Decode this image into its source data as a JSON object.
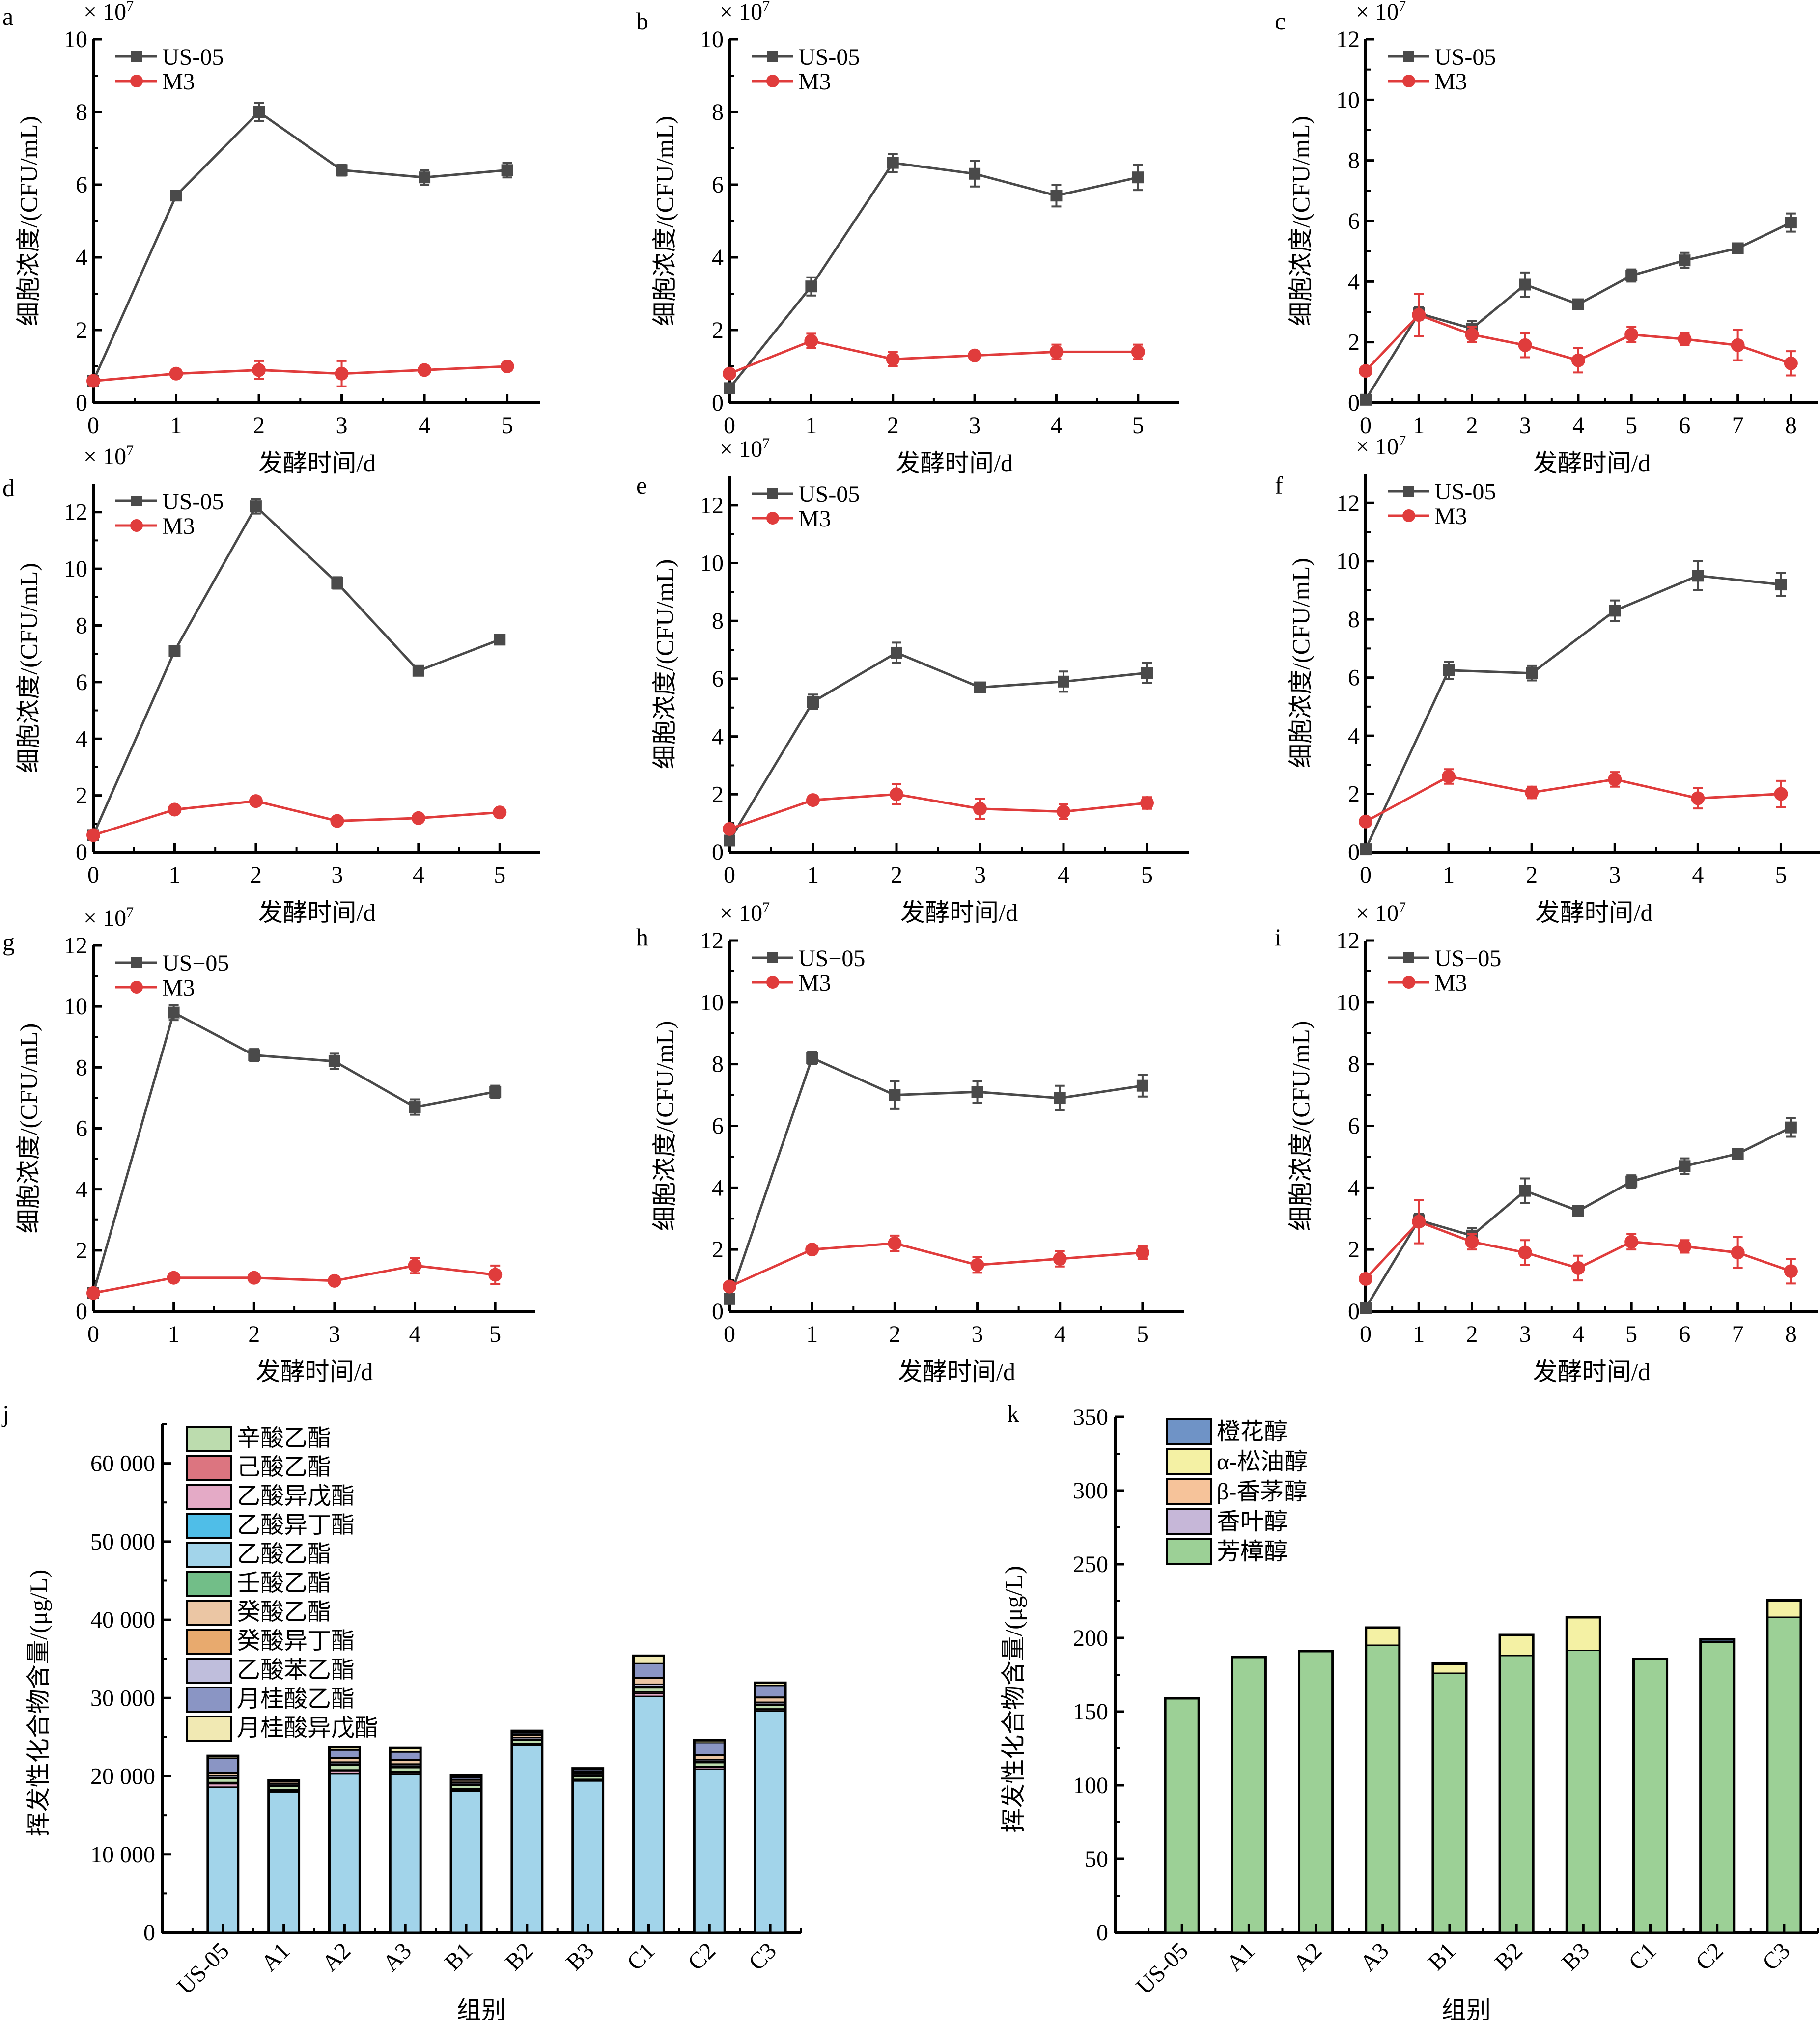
{
  "colors": {
    "us05": "#4a4a4a",
    "m3": "#e03c3c"
  },
  "chart_data": [
    {
      "id": "a",
      "type": "line",
      "panel_label": "a",
      "multiplier": "× 10",
      "exponent": "7",
      "xlabel": "发酵时间/d",
      "ylabel": "细胞浓度/(CFU/mL)",
      "ylim": [
        0,
        10
      ],
      "yticks": [
        0,
        2,
        4,
        6,
        8,
        10
      ],
      "xlim": [
        0,
        5.4
      ],
      "xticks": [
        0,
        1,
        2,
        3,
        4,
        5
      ],
      "series": [
        {
          "name": "US-05",
          "marker": "square",
          "values": [
            0.6,
            5.7,
            8.0,
            6.4,
            6.2,
            6.4
          ],
          "errors": [
            0.1,
            0.1,
            0.25,
            0.15,
            0.2,
            0.2
          ]
        },
        {
          "name": "M3",
          "marker": "circle",
          "values": [
            0.6,
            0.8,
            0.9,
            0.8,
            0.9,
            1.0
          ],
          "errors": [
            0.05,
            0.05,
            0.25,
            0.35,
            0.1,
            0.05
          ]
        }
      ]
    },
    {
      "id": "b",
      "type": "line",
      "panel_label": "b",
      "multiplier": "× 10",
      "exponent": "7",
      "xlabel": "发酵时间/d",
      "ylabel": "细胞浓度/(CFU/mL)",
      "ylim": [
        0,
        10
      ],
      "yticks": [
        0,
        2,
        4,
        6,
        8,
        10
      ],
      "xlim": [
        0,
        5.5
      ],
      "xticks": [
        0,
        1,
        2,
        3,
        4,
        5
      ],
      "series": [
        {
          "name": "US-05",
          "marker": "square",
          "values": [
            0.4,
            3.2,
            6.6,
            6.3,
            5.7,
            6.2
          ],
          "errors": [
            0.05,
            0.25,
            0.25,
            0.35,
            0.3,
            0.35
          ]
        },
        {
          "name": "M3",
          "marker": "circle",
          "values": [
            0.8,
            1.7,
            1.2,
            1.3,
            1.4,
            1.4
          ],
          "errors": [
            0.05,
            0.2,
            0.2,
            0.1,
            0.2,
            0.2
          ]
        }
      ]
    },
    {
      "id": "c",
      "type": "line",
      "panel_label": "c",
      "multiplier": "× 10",
      "exponent": "7",
      "xlabel": "发酵时间/d",
      "ylabel": "细胞浓度/(CFU/mL)",
      "ylim": [
        0,
        12
      ],
      "yticks": [
        0,
        2,
        4,
        6,
        8,
        10,
        12
      ],
      "xlim": [
        0,
        8.5
      ],
      "xticks": [
        0,
        1,
        2,
        3,
        4,
        5,
        6,
        7,
        8
      ],
      "series": [
        {
          "name": "US-05",
          "marker": "square",
          "values": [
            0.1,
            2.95,
            2.45,
            3.9,
            3.25,
            4.2,
            4.7,
            5.1,
            5.95
          ],
          "errors": [
            0.05,
            0.2,
            0.25,
            0.4,
            0.1,
            0.2,
            0.25,
            0.15,
            0.3
          ]
        },
        {
          "name": "M3",
          "marker": "circle",
          "values": [
            1.05,
            2.9,
            2.25,
            1.9,
            1.4,
            2.25,
            2.1,
            1.9,
            1.3
          ],
          "errors": [
            0.05,
            0.7,
            0.25,
            0.4,
            0.4,
            0.25,
            0.2,
            0.5,
            0.4
          ]
        }
      ]
    },
    {
      "id": "d",
      "type": "line",
      "panel_label": "d",
      "multiplier": "× 10",
      "exponent": "7",
      "xlabel": "发酵时间/d",
      "ylabel": "细胞浓度/(CFU/mL)",
      "ylim": [
        0,
        13
      ],
      "yticks": [
        0,
        2,
        4,
        6,
        8,
        10,
        12
      ],
      "xlim": [
        0,
        5.5
      ],
      "xticks": [
        0,
        1,
        2,
        3,
        4,
        5
      ],
      "series": [
        {
          "name": "US-05",
          "marker": "square",
          "values": [
            0.6,
            7.1,
            12.2,
            9.5,
            6.4,
            7.5
          ],
          "errors": [
            0.05,
            0.1,
            0.25,
            0.2,
            0.1,
            0.15
          ]
        },
        {
          "name": "M3",
          "marker": "circle",
          "values": [
            0.6,
            1.5,
            1.8,
            1.1,
            1.2,
            1.4
          ],
          "errors": [
            0.05,
            0.1,
            0.1,
            0.05,
            0.1,
            0.05
          ]
        }
      ]
    },
    {
      "id": "e",
      "type": "line",
      "panel_label": "e",
      "multiplier": "× 10",
      "exponent": "7",
      "xlabel": "发酵时间/d",
      "ylabel": "细胞浓度/(CFU/mL)",
      "ylim": [
        0,
        13
      ],
      "yticks": [
        0,
        2,
        4,
        6,
        8,
        10,
        12
      ],
      "xlim": [
        0,
        5.5
      ],
      "xticks": [
        0,
        1,
        2,
        3,
        4,
        5
      ],
      "series": [
        {
          "name": "US-05",
          "marker": "square",
          "values": [
            0.4,
            5.2,
            6.9,
            5.7,
            5.9,
            6.2
          ],
          "errors": [
            0.05,
            0.25,
            0.35,
            0.15,
            0.35,
            0.35
          ]
        },
        {
          "name": "M3",
          "marker": "circle",
          "values": [
            0.8,
            1.8,
            2.0,
            1.5,
            1.4,
            1.7
          ],
          "errors": [
            0.05,
            0.1,
            0.35,
            0.35,
            0.25,
            0.2
          ]
        }
      ]
    },
    {
      "id": "f",
      "type": "line",
      "panel_label": "f",
      "multiplier": "× 10",
      "exponent": "7",
      "xlabel": "发酵时间/d",
      "ylabel": "细胞浓度/(CFU/mL)",
      "ylim": [
        0,
        13
      ],
      "yticks": [
        0,
        2,
        4,
        6,
        8,
        10,
        12
      ],
      "xlim": [
        0,
        5.5
      ],
      "xticks": [
        0,
        1,
        2,
        3,
        4,
        5
      ],
      "series": [
        {
          "name": "US-05",
          "marker": "square",
          "values": [
            0.1,
            6.25,
            6.15,
            8.3,
            9.5,
            9.2
          ],
          "errors": [
            0.05,
            0.3,
            0.25,
            0.35,
            0.5,
            0.4
          ]
        },
        {
          "name": "M3",
          "marker": "circle",
          "values": [
            1.05,
            2.6,
            2.05,
            2.5,
            1.85,
            2.0
          ],
          "errors": [
            0.05,
            0.25,
            0.2,
            0.25,
            0.35,
            0.45
          ]
        }
      ]
    },
    {
      "id": "g",
      "type": "line",
      "panel_label": "g",
      "multiplier": "× 10",
      "exponent": "7",
      "xlabel": "发酵时间/d",
      "ylabel": "细胞浓度/(CFU/mL)",
      "ylim": [
        0,
        12
      ],
      "yticks": [
        0,
        2,
        4,
        6,
        8,
        10,
        12
      ],
      "xlim": [
        0,
        5.5
      ],
      "xticks": [
        0,
        1,
        2,
        3,
        4,
        5
      ],
      "series": [
        {
          "name": "US−05",
          "marker": "square",
          "values": [
            0.6,
            9.8,
            8.4,
            8.2,
            6.7,
            7.2
          ],
          "errors": [
            0.05,
            0.25,
            0.2,
            0.25,
            0.25,
            0.2
          ]
        },
        {
          "name": "M3",
          "marker": "circle",
          "values": [
            0.6,
            1.1,
            1.1,
            1.0,
            1.5,
            1.2
          ],
          "errors": [
            0.05,
            0.05,
            0.05,
            0.1,
            0.25,
            0.3
          ]
        }
      ]
    },
    {
      "id": "h",
      "type": "line",
      "panel_label": "h",
      "multiplier": "× 10",
      "exponent": "7",
      "xlabel": "发酵时间/d",
      "ylabel": "细胞浓度/(CFU/mL)",
      "ylim": [
        0,
        12
      ],
      "yticks": [
        0,
        2,
        4,
        6,
        8,
        10,
        12
      ],
      "xlim": [
        0,
        5.5
      ],
      "xticks": [
        0,
        1,
        2,
        3,
        4,
        5
      ],
      "series": [
        {
          "name": "US−05",
          "marker": "square",
          "values": [
            0.4,
            8.2,
            7.0,
            7.1,
            6.9,
            7.3
          ],
          "errors": [
            0.05,
            0.2,
            0.45,
            0.35,
            0.4,
            0.35
          ]
        },
        {
          "name": "M3",
          "marker": "circle",
          "values": [
            0.8,
            2.0,
            2.2,
            1.5,
            1.7,
            1.9
          ],
          "errors": [
            0.05,
            0.1,
            0.25,
            0.25,
            0.25,
            0.2
          ]
        }
      ]
    },
    {
      "id": "i",
      "type": "line",
      "panel_label": "i",
      "multiplier": "× 10",
      "exponent": "7",
      "xlabel": "发酵时间/d",
      "ylabel": "细胞浓度/(CFU/mL)",
      "ylim": [
        0,
        12
      ],
      "yticks": [
        0,
        2,
        4,
        6,
        8,
        10,
        12
      ],
      "xlim": [
        0,
        8.5
      ],
      "xticks": [
        0,
        1,
        2,
        3,
        4,
        5,
        6,
        7,
        8
      ],
      "series": [
        {
          "name": "US−05",
          "marker": "square",
          "values": [
            0.1,
            2.95,
            2.45,
            3.9,
            3.25,
            4.2,
            4.7,
            5.1,
            5.95
          ],
          "errors": [
            0.05,
            0.2,
            0.25,
            0.4,
            0.1,
            0.2,
            0.25,
            0.15,
            0.3
          ]
        },
        {
          "name": "M3",
          "marker": "circle",
          "values": [
            1.05,
            2.9,
            2.25,
            1.9,
            1.4,
            2.25,
            2.1,
            1.9,
            1.3
          ],
          "errors": [
            0.05,
            0.7,
            0.25,
            0.4,
            0.4,
            0.25,
            0.2,
            0.5,
            0.4
          ]
        }
      ]
    },
    {
      "id": "j",
      "type": "bar",
      "stacked": true,
      "panel_label": "j",
      "xlabel": "组别",
      "ylabel": "挥发性化合物含量/(μg/L)",
      "ylim": [
        0,
        65000
      ],
      "yticks": [
        0,
        10000,
        20000,
        30000,
        40000,
        50000,
        60000
      ],
      "ytick_labels": [
        "0",
        "10 000",
        "20 000",
        "30 000",
        "40 000",
        "50 000",
        "60 000"
      ],
      "categories": [
        "US-05",
        "A1",
        "A2",
        "A3",
        "B1",
        "B2",
        "B3",
        "C1",
        "C2",
        "C3"
      ],
      "legend": [
        "辛酸乙酯",
        "己酸乙酯",
        "乙酸异戊酯",
        "乙酸异丁酯",
        "乙酸乙酯",
        "壬酸乙酯",
        "癸酸乙酯",
        "癸酸异丁酯",
        "乙酸苯乙酯",
        "月桂酸乙酯",
        "月桂酸异戊酯"
      ],
      "series": [
        {
          "name": "乙酸乙酯",
          "color": "#a2d4ea",
          "values": [
            18600,
            18000,
            20300,
            20200,
            18100,
            23900,
            19400,
            30200,
            20900,
            28300
          ]
        },
        {
          "name": "乙酸异戊酯",
          "color": "#e4aac6",
          "values": [
            450,
            150,
            350,
            200,
            180,
            150,
            120,
            400,
            250,
            200
          ]
        },
        {
          "name": "己酸乙酯",
          "color": "#dc7580",
          "values": [
            150,
            100,
            150,
            200,
            100,
            100,
            80,
            200,
            100,
            100
          ]
        },
        {
          "name": "辛酸乙酯",
          "color": "#bcdcae",
          "values": [
            500,
            500,
            600,
            500,
            500,
            450,
            400,
            500,
            500,
            500
          ]
        },
        {
          "name": "壬酸乙酯",
          "color": "#72be88",
          "values": [
            50,
            50,
            100,
            150,
            50,
            50,
            50,
            100,
            50,
            50
          ]
        },
        {
          "name": "乙酸异丁酯",
          "color": "#4fbee8",
          "values": [
            50,
            50,
            50,
            50,
            50,
            50,
            50,
            50,
            50,
            50
          ]
        },
        {
          "name": "乙酸苯乙酯",
          "color": "#bfbedc",
          "values": [
            250,
            200,
            250,
            250,
            250,
            250,
            200,
            300,
            250,
            250
          ]
        },
        {
          "name": "癸酸乙酯",
          "color": "#ebc6a4",
          "values": [
            300,
            250,
            500,
            500,
            300,
            300,
            200,
            800,
            600,
            600
          ]
        },
        {
          "name": "癸酸异丁酯",
          "color": "#e8aa6e",
          "values": [
            50,
            50,
            50,
            50,
            50,
            50,
            50,
            50,
            50,
            50
          ]
        },
        {
          "name": "月桂酸乙酯",
          "color": "#8a95c4",
          "values": [
            1900,
            0,
            1000,
            1000,
            300,
            250,
            300,
            1800,
            1500,
            1500
          ]
        },
        {
          "name": "月桂酸异戊酯",
          "color": "#f1e9b3",
          "values": [
            300,
            150,
            350,
            500,
            200,
            250,
            150,
            1000,
            350,
            350
          ]
        }
      ]
    },
    {
      "id": "k",
      "type": "bar",
      "stacked": true,
      "panel_label": "k",
      "xlabel": "组别",
      "ylabel": "挥发性化合物含量/(μg/L)",
      "ylim": [
        0,
        350
      ],
      "yticks": [
        0,
        50,
        100,
        150,
        200,
        250,
        300,
        350
      ],
      "categories": [
        "US-05",
        "A1",
        "A2",
        "A3",
        "B1",
        "B2",
        "B3",
        "C1",
        "C2",
        "C3"
      ],
      "legend": [
        "橙花醇",
        "α-松油醇",
        "β-香茅醇",
        "香叶醇",
        "芳樟醇"
      ],
      "series": [
        {
          "name": "芳樟醇",
          "color": "#9cd096",
          "values": [
            159,
            187,
            191,
            195,
            176,
            188,
            191.5,
            185.5,
            197,
            214
          ]
        },
        {
          "name": "香叶醇",
          "color": "#c6b7d8",
          "values": [
            0,
            0,
            0,
            0,
            0,
            0,
            0,
            0,
            0,
            0
          ]
        },
        {
          "name": "β-香茅醇",
          "color": "#f6c39a",
          "values": [
            0,
            0,
            0,
            0,
            0,
            0,
            0,
            0,
            0,
            0
          ]
        },
        {
          "name": "α-松油醇",
          "color": "#f4f1a4",
          "values": [
            0,
            0,
            0,
            12,
            6.5,
            14,
            22.5,
            0,
            0.5,
            11.5
          ]
        },
        {
          "name": "橙花醇",
          "color": "#6f93c6",
          "values": [
            0,
            0,
            0,
            0,
            0,
            0,
            0,
            0,
            1.5,
            0
          ]
        }
      ]
    }
  ]
}
